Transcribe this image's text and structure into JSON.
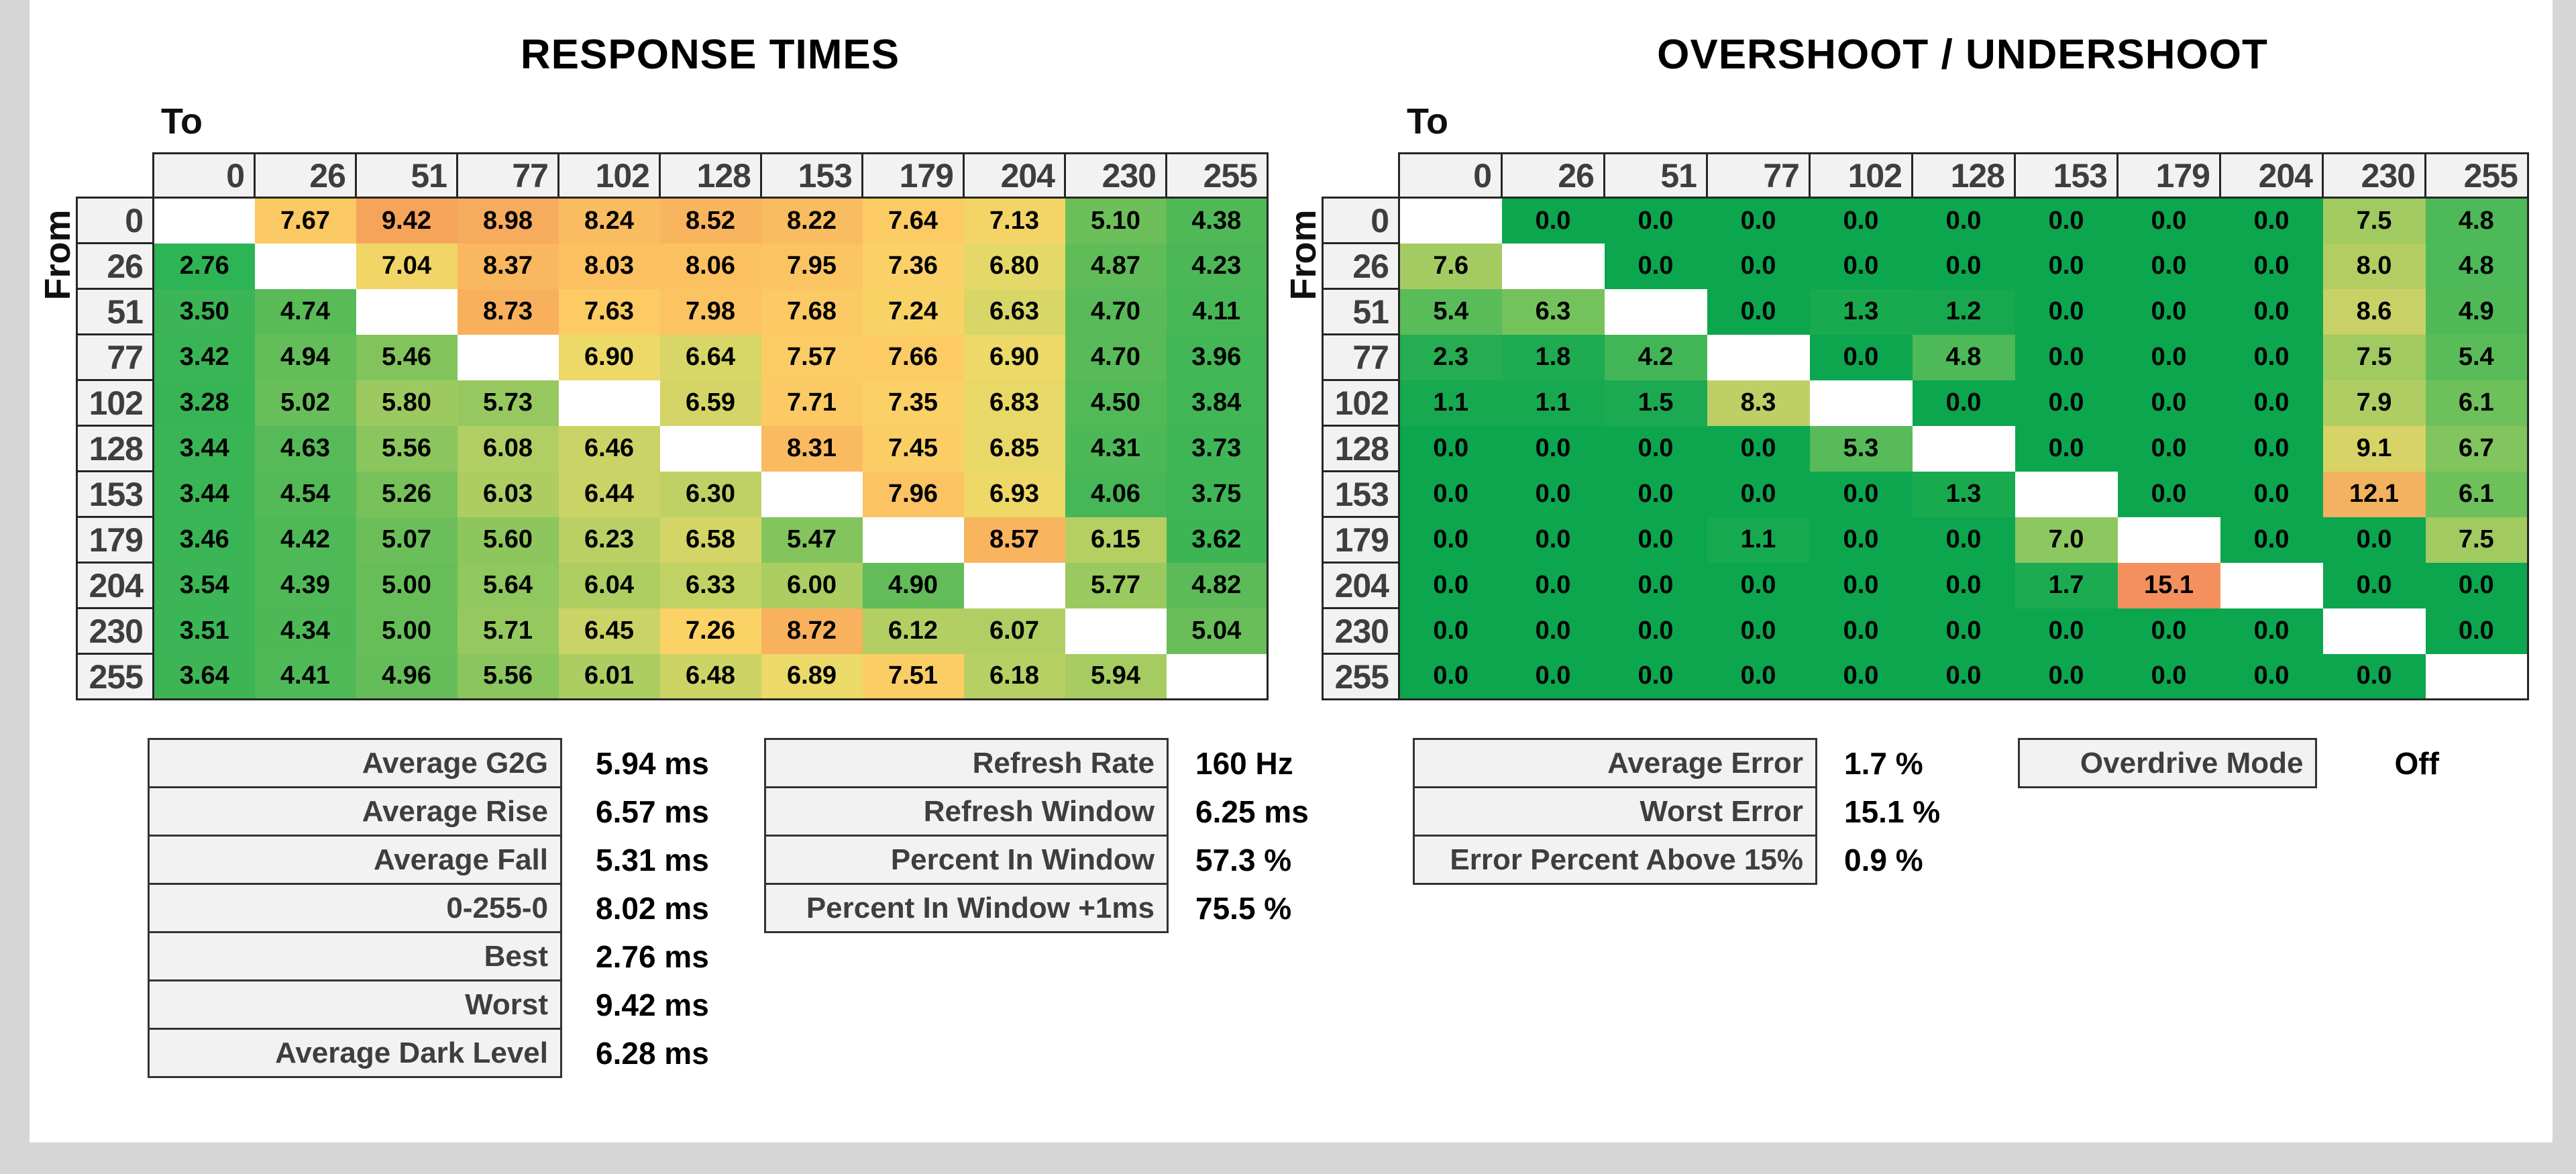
{
  "page": {
    "background_color": "#d6d6d6",
    "surface_color": "#ffffff",
    "header_cell_color": "#f2f2f2",
    "header_text_color": "#3e3e3e",
    "border_color": "#262626"
  },
  "chart_data": [
    {
      "type": "heatmap",
      "title": "RESPONSE TIMES",
      "unit": "ms",
      "decimals": 2,
      "x_axis_label": "To",
      "y_axis_label": "From",
      "categories": [
        "0",
        "26",
        "51",
        "77",
        "102",
        "128",
        "153",
        "179",
        "204",
        "230",
        "255"
      ],
      "rows": [
        [
          null,
          7.67,
          9.42,
          8.98,
          8.24,
          8.52,
          8.22,
          7.64,
          7.13,
          5.1,
          4.38
        ],
        [
          2.76,
          null,
          7.04,
          8.37,
          8.03,
          8.06,
          7.95,
          7.36,
          6.8,
          4.87,
          4.23
        ],
        [
          3.5,
          4.74,
          null,
          8.73,
          7.63,
          7.98,
          7.68,
          7.24,
          6.63,
          4.7,
          4.11
        ],
        [
          3.42,
          4.94,
          5.46,
          null,
          6.9,
          6.64,
          7.57,
          7.66,
          6.9,
          4.7,
          3.96
        ],
        [
          3.28,
          5.02,
          5.8,
          5.73,
          null,
          6.59,
          7.71,
          7.35,
          6.83,
          4.5,
          3.84
        ],
        [
          3.44,
          4.63,
          5.56,
          6.08,
          6.46,
          null,
          8.31,
          7.45,
          6.85,
          4.31,
          3.73
        ],
        [
          3.44,
          4.54,
          5.26,
          6.03,
          6.44,
          6.3,
          null,
          7.96,
          6.93,
          4.06,
          3.75
        ],
        [
          3.46,
          4.42,
          5.07,
          5.6,
          6.23,
          6.58,
          5.47,
          null,
          8.57,
          6.15,
          3.62
        ],
        [
          3.54,
          4.39,
          5.0,
          5.64,
          6.04,
          6.33,
          6.0,
          4.9,
          null,
          5.77,
          4.82
        ],
        [
          3.51,
          4.34,
          5.0,
          5.71,
          6.45,
          7.26,
          8.72,
          6.12,
          6.07,
          null,
          5.04
        ],
        [
          3.64,
          4.41,
          4.96,
          5.56,
          6.01,
          6.48,
          6.89,
          7.51,
          6.18,
          5.94,
          null
        ]
      ],
      "color_scale": [
        [
          2.76,
          "#2db454"
        ],
        [
          4.0,
          "#44b656"
        ],
        [
          4.8,
          "#5bbb58"
        ],
        [
          5.5,
          "#85c45c"
        ],
        [
          6.0,
          "#abcd62"
        ],
        [
          6.5,
          "#cdd466"
        ],
        [
          6.9,
          "#ecd968"
        ],
        [
          7.3,
          "#fbd166"
        ],
        [
          7.8,
          "#fcc863"
        ],
        [
          8.4,
          "#f9b75f"
        ],
        [
          9.0,
          "#f7ab5c"
        ],
        [
          9.42,
          "#f6a45a"
        ]
      ]
    },
    {
      "type": "heatmap",
      "title": "OVERSHOOT / UNDERSHOOT",
      "unit": "%",
      "decimals": 1,
      "x_axis_label": "To",
      "y_axis_label": "From",
      "categories": [
        "0",
        "26",
        "51",
        "77",
        "102",
        "128",
        "153",
        "179",
        "204",
        "230",
        "255"
      ],
      "rows": [
        [
          null,
          0.0,
          0.0,
          0.0,
          0.0,
          0.0,
          0.0,
          0.0,
          0.0,
          7.5,
          4.8
        ],
        [
          7.6,
          null,
          0.0,
          0.0,
          0.0,
          0.0,
          0.0,
          0.0,
          0.0,
          8.0,
          4.8
        ],
        [
          5.4,
          6.3,
          null,
          0.0,
          1.3,
          1.2,
          0.0,
          0.0,
          0.0,
          8.6,
          4.9
        ],
        [
          2.3,
          1.8,
          4.2,
          null,
          0.0,
          4.8,
          0.0,
          0.0,
          0.0,
          7.5,
          5.4
        ],
        [
          1.1,
          1.1,
          1.5,
          8.3,
          null,
          0.0,
          0.0,
          0.0,
          0.0,
          7.9,
          6.1
        ],
        [
          0.0,
          0.0,
          0.0,
          0.0,
          5.3,
          null,
          0.0,
          0.0,
          0.0,
          9.1,
          6.7
        ],
        [
          0.0,
          0.0,
          0.0,
          0.0,
          0.0,
          1.3,
          null,
          0.0,
          0.0,
          12.1,
          6.1
        ],
        [
          0.0,
          0.0,
          0.0,
          1.1,
          0.0,
          0.0,
          7.0,
          null,
          0.0,
          0.0,
          7.5
        ],
        [
          0.0,
          0.0,
          0.0,
          0.0,
          0.0,
          0.0,
          1.7,
          15.1,
          null,
          0.0,
          0.0
        ],
        [
          0.0,
          0.0,
          0.0,
          0.0,
          0.0,
          0.0,
          0.0,
          0.0,
          0.0,
          null,
          0.0
        ],
        [
          0.0,
          0.0,
          0.0,
          0.0,
          0.0,
          0.0,
          0.0,
          0.0,
          0.0,
          0.0,
          null
        ]
      ],
      "color_scale": [
        [
          0.0,
          "#0ca64e"
        ],
        [
          1.8,
          "#1eab51"
        ],
        [
          3.0,
          "#31b053"
        ],
        [
          4.5,
          "#46b757"
        ],
        [
          5.5,
          "#5cbc59"
        ],
        [
          6.5,
          "#7ac35c"
        ],
        [
          7.2,
          "#95c860"
        ],
        [
          7.8,
          "#accc62"
        ],
        [
          8.4,
          "#c2d065"
        ],
        [
          9.1,
          "#d7d367"
        ],
        [
          10.0,
          "#e4d167"
        ],
        [
          11.0,
          "#edc465"
        ],
        [
          12.1,
          "#f2b25f"
        ],
        [
          13.5,
          "#f3a05f"
        ],
        [
          15.1,
          "#f4905e"
        ]
      ]
    }
  ],
  "summaries": {
    "response": {
      "rows": [
        {
          "label": "Average G2G",
          "value": "5.94 ms"
        },
        {
          "label": "Average Rise",
          "value": "6.57 ms"
        },
        {
          "label": "Average Fall",
          "value": "5.31 ms"
        },
        {
          "label": "0-255-0",
          "value": "8.02 ms"
        },
        {
          "label": "Best",
          "value": "2.76 ms"
        },
        {
          "label": "Worst",
          "value": "9.42 ms"
        },
        {
          "label": "Average Dark Level",
          "value": "6.28 ms"
        }
      ]
    },
    "refresh": {
      "rows": [
        {
          "label": "Refresh Rate",
          "value": "160 Hz"
        },
        {
          "label": "Refresh Window",
          "value": "6.25 ms"
        },
        {
          "label": "Percent In Window",
          "value": "57.3 %"
        },
        {
          "label": "Percent In Window +1ms",
          "value": "75.5 %"
        }
      ]
    },
    "error": {
      "rows": [
        {
          "label": "Average Error",
          "value": "1.7 %"
        },
        {
          "label": "Worst Error",
          "value": "15.1 %"
        },
        {
          "label": "Error Percent Above 15%",
          "value": "0.9 %"
        }
      ]
    },
    "overdrive": {
      "rows": [
        {
          "label": "Overdrive Mode",
          "value": "Off"
        }
      ]
    }
  }
}
